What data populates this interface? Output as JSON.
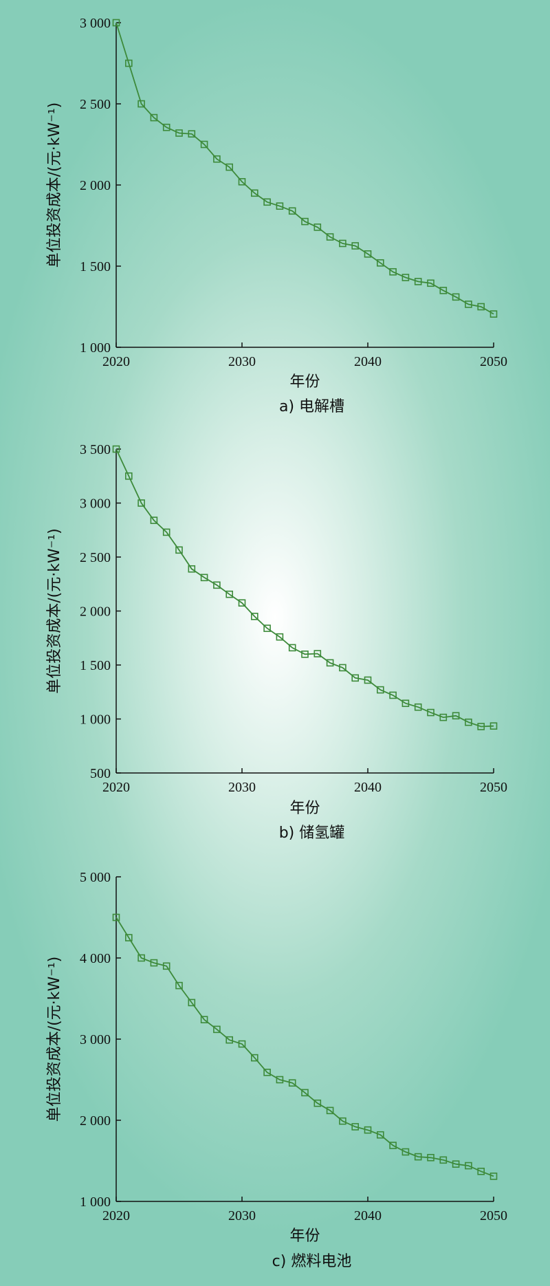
{
  "chart_data": [
    {
      "type": "line",
      "caption": "a) 电解槽",
      "xlabel": "年份",
      "ylabel": "单位投资成本/(元·kW⁻¹)",
      "xlim": [
        2020,
        2050
      ],
      "ylim": [
        1000,
        3000
      ],
      "xticks": [
        2020,
        2030,
        2040,
        2050
      ],
      "xtick_labels": [
        "2020",
        "2030",
        "2040",
        "2050"
      ],
      "yticks": [
        1000,
        1500,
        2000,
        2500,
        3000
      ],
      "ytick_labels": [
        "1 000",
        "1 500",
        "2 000",
        "2 500",
        "3 000"
      ],
      "x": [
        2020,
        2021,
        2022,
        2023,
        2024,
        2025,
        2026,
        2027,
        2028,
        2029,
        2030,
        2031,
        2032,
        2033,
        2034,
        2035,
        2036,
        2037,
        2038,
        2039,
        2040,
        2041,
        2042,
        2043,
        2044,
        2045,
        2046,
        2047,
        2048,
        2049,
        2050
      ],
      "series": [
        {
          "values": [
            3000,
            2750,
            2500,
            2415,
            2355,
            2320,
            2315,
            2250,
            2160,
            2110,
            2020,
            1950,
            1895,
            1870,
            1840,
            1775,
            1740,
            1680,
            1640,
            1625,
            1575,
            1520,
            1465,
            1430,
            1405,
            1395,
            1350,
            1310,
            1265,
            1250,
            1205
          ]
        }
      ],
      "marker": "square",
      "color": "#3d8a3a",
      "grid": false
    },
    {
      "type": "line",
      "caption": "b) 储氢罐",
      "xlabel": "年份",
      "ylabel": "单位投资成本/(元·kW⁻¹)",
      "xlim": [
        2020,
        2050
      ],
      "ylim": [
        500,
        3500
      ],
      "xticks": [
        2020,
        2030,
        2040,
        2050
      ],
      "xtick_labels": [
        "2020",
        "2030",
        "2040",
        "2050"
      ],
      "yticks": [
        500,
        1000,
        1500,
        2000,
        2500,
        3000,
        3500
      ],
      "ytick_labels": [
        "500",
        "1 000",
        "1 500",
        "2 000",
        "2 500",
        "3 000",
        "3 500"
      ],
      "x": [
        2020,
        2021,
        2022,
        2023,
        2024,
        2025,
        2026,
        2027,
        2028,
        2029,
        2030,
        2031,
        2032,
        2033,
        2034,
        2035,
        2036,
        2037,
        2038,
        2039,
        2040,
        2041,
        2042,
        2043,
        2044,
        2045,
        2046,
        2047,
        2048,
        2049,
        2050
      ],
      "series": [
        {
          "values": [
            3500,
            3250,
            3000,
            2840,
            2730,
            2565,
            2390,
            2310,
            2240,
            2155,
            2075,
            1950,
            1840,
            1760,
            1660,
            1600,
            1605,
            1520,
            1475,
            1380,
            1360,
            1270,
            1220,
            1145,
            1110,
            1060,
            1015,
            1030,
            970,
            930,
            935
          ]
        }
      ],
      "marker": "square",
      "color": "#3d8a3a",
      "grid": false
    },
    {
      "type": "line",
      "caption": "c) 燃料电池",
      "xlabel": "年份",
      "ylabel": "单位投资成本/(元·kW⁻¹)",
      "xlim": [
        2020,
        2050
      ],
      "ylim": [
        1000,
        5000
      ],
      "xticks": [
        2020,
        2030,
        2040,
        2050
      ],
      "xtick_labels": [
        "2020",
        "2030",
        "2040",
        "2050"
      ],
      "yticks": [
        1000,
        2000,
        3000,
        4000,
        5000
      ],
      "ytick_labels": [
        "1 000",
        "2 000",
        "3 000",
        "4 000",
        "5 000"
      ],
      "x": [
        2020,
        2021,
        2022,
        2023,
        2024,
        2025,
        2026,
        2027,
        2028,
        2029,
        2030,
        2031,
        2032,
        2033,
        2034,
        2035,
        2036,
        2037,
        2038,
        2039,
        2040,
        2041,
        2042,
        2043,
        2044,
        2045,
        2046,
        2047,
        2048,
        2049,
        2050
      ],
      "series": [
        {
          "values": [
            4500,
            4250,
            4000,
            3940,
            3900,
            3660,
            3450,
            3240,
            3120,
            2990,
            2940,
            2770,
            2590,
            2500,
            2460,
            2340,
            2210,
            2120,
            1990,
            1920,
            1880,
            1820,
            1690,
            1610,
            1550,
            1540,
            1510,
            1460,
            1440,
            1370,
            1310
          ]
        }
      ],
      "marker": "square",
      "color": "#3d8a3a",
      "grid": false
    }
  ]
}
